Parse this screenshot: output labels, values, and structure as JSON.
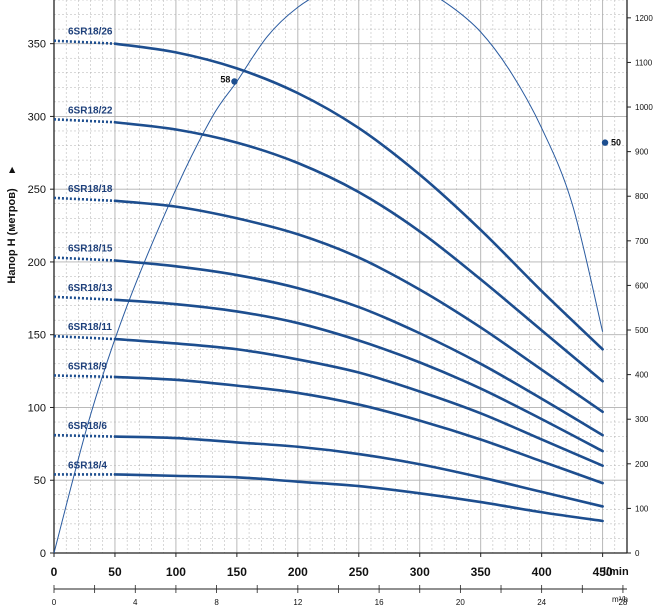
{
  "chart_data": {
    "type": "line",
    "y_axis_label": "Напор H  (метров)",
    "x_axis_unit": "l/min",
    "x2_axis_unit": "m³/h",
    "xlim": [
      0,
      470
    ],
    "ylim": [
      0,
      380
    ],
    "x_ticks": [
      0,
      50,
      100,
      150,
      200,
      250,
      300,
      350,
      400,
      450
    ],
    "y_ticks": [
      0,
      50,
      100,
      150,
      200,
      250,
      300,
      350
    ],
    "x2_ticks": [
      0,
      4,
      8,
      12,
      16,
      20,
      24,
      28
    ],
    "y2_ticks": [
      0,
      100,
      200,
      300,
      400,
      500,
      600,
      700,
      800,
      900,
      1000,
      1100,
      1200
    ],
    "y2_lim": [
      0,
      1240
    ],
    "grid": true,
    "colors": {
      "curve": "#1d4e8f",
      "grid": "#b0b0b0",
      "axis": "#222222"
    },
    "series": [
      {
        "name": "6SR18/26",
        "shutoff_head": 352,
        "x": [
          0,
          50,
          100,
          150,
          200,
          250,
          300,
          350,
          400,
          450
        ],
        "y": [
          352,
          350,
          344,
          333,
          316,
          292,
          260,
          222,
          180,
          140
        ]
      },
      {
        "name": "6SR18/22",
        "shutoff_head": 298,
        "x": [
          0,
          50,
          100,
          150,
          200,
          250,
          300,
          350,
          400,
          450
        ],
        "y": [
          298,
          296,
          291,
          282,
          268,
          248,
          221,
          188,
          153,
          118
        ]
      },
      {
        "name": "6SR18/18",
        "shutoff_head": 244,
        "x": [
          0,
          50,
          100,
          150,
          200,
          250,
          300,
          350,
          400,
          450
        ],
        "y": [
          244,
          242,
          238,
          230,
          219,
          203,
          181,
          155,
          126,
          97
        ]
      },
      {
        "name": "6SR18/15",
        "shutoff_head": 203,
        "x": [
          0,
          50,
          100,
          150,
          200,
          250,
          300,
          350,
          400,
          450
        ],
        "y": [
          203,
          201,
          197,
          191,
          182,
          169,
          151,
          130,
          106,
          81
        ]
      },
      {
        "name": "6SR18/13",
        "shutoff_head": 176,
        "x": [
          0,
          50,
          100,
          150,
          200,
          250,
          300,
          350,
          400,
          450
        ],
        "y": [
          176,
          174,
          171,
          166,
          158,
          146,
          131,
          113,
          92,
          70
        ]
      },
      {
        "name": "6SR18/11",
        "shutoff_head": 149,
        "x": [
          0,
          50,
          100,
          150,
          200,
          250,
          300,
          350,
          400,
          450
        ],
        "y": [
          149,
          147,
          144,
          140,
          133,
          124,
          111,
          96,
          78,
          60
        ]
      },
      {
        "name": "6SR18/9",
        "shutoff_head": 122,
        "x": [
          0,
          50,
          100,
          150,
          200,
          250,
          300,
          350,
          400,
          450
        ],
        "y": [
          122,
          121,
          119,
          115,
          110,
          102,
          91,
          78,
          63,
          48
        ]
      },
      {
        "name": "6SR18/6",
        "shutoff_head": 81,
        "x": [
          0,
          50,
          100,
          150,
          200,
          250,
          300,
          350,
          400,
          450
        ],
        "y": [
          81,
          80,
          79,
          76,
          73,
          68,
          61,
          52,
          42,
          32
        ]
      },
      {
        "name": "6SR18/4",
        "shutoff_head": 54,
        "x": [
          0,
          50,
          100,
          150,
          200,
          250,
          300,
          350,
          400,
          450
        ],
        "y": [
          54,
          54,
          53,
          52,
          49,
          46,
          41,
          35,
          28,
          22
        ]
      }
    ],
    "envelope": {
      "x": [
        0,
        30,
        60,
        100,
        130,
        150,
        175,
        200,
        225,
        250,
        275,
        300,
        325,
        350,
        375,
        400,
        425,
        450
      ],
      "y": [
        0,
        95,
        170,
        250,
        300,
        324,
        355,
        375,
        387,
        393,
        393,
        388,
        376,
        358,
        330,
        292,
        240,
        152
      ],
      "markers": [
        {
          "x": 148,
          "y": 324,
          "label": "58"
        },
        {
          "x": 452,
          "y": 282,
          "label": "50"
        }
      ]
    }
  }
}
